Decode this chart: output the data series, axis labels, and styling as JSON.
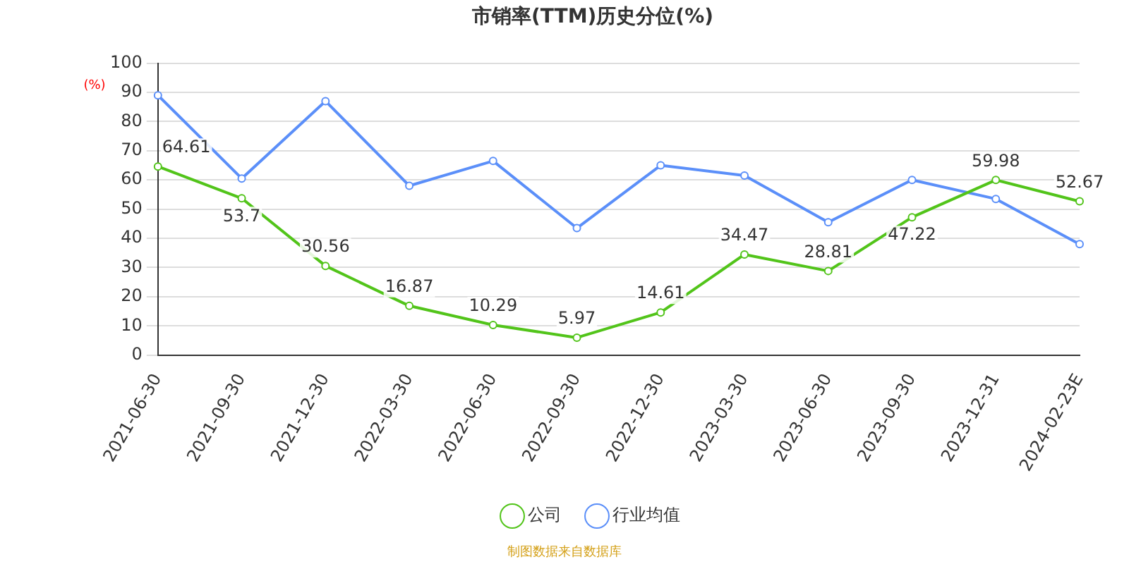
{
  "chart_data": {
    "type": "line",
    "title": "市销率(TTM)历史分位(%)",
    "ylabel": "(%)",
    "categories": [
      "2021-06-30",
      "2021-09-30",
      "2021-12-30",
      "2022-03-30",
      "2022-06-30",
      "2022-09-30",
      "2022-12-30",
      "2023-03-30",
      "2023-06-30",
      "2023-09-30",
      "2023-12-31",
      "2024-02-23E"
    ],
    "series": [
      {
        "name": "公司",
        "color": "#52c41a",
        "values": [
          64.61,
          53.7,
          30.56,
          16.87,
          10.29,
          5.97,
          14.61,
          34.47,
          28.81,
          47.22,
          59.98,
          52.67
        ],
        "value_labels": [
          "64.61",
          "53.7",
          "30.56",
          "16.87",
          "10.29",
          "5.97",
          "14.61",
          "34.47",
          "28.81",
          "47.22",
          "59.98",
          "52.67"
        ]
      },
      {
        "name": "行业均值",
        "color": "#5b8ff9",
        "values": [
          89,
          60.5,
          87,
          58,
          66.5,
          43.5,
          65,
          61.5,
          45.5,
          60,
          53.5,
          38
        ]
      }
    ],
    "ylim": [
      0,
      100
    ],
    "yticks": [
      0,
      10,
      20,
      30,
      40,
      50,
      60,
      70,
      80,
      90,
      100
    ],
    "grid": "y",
    "legend": "bottom",
    "marker": "circle",
    "line_style": "solid",
    "annotations": [
      "制图数据来自数据库"
    ]
  }
}
